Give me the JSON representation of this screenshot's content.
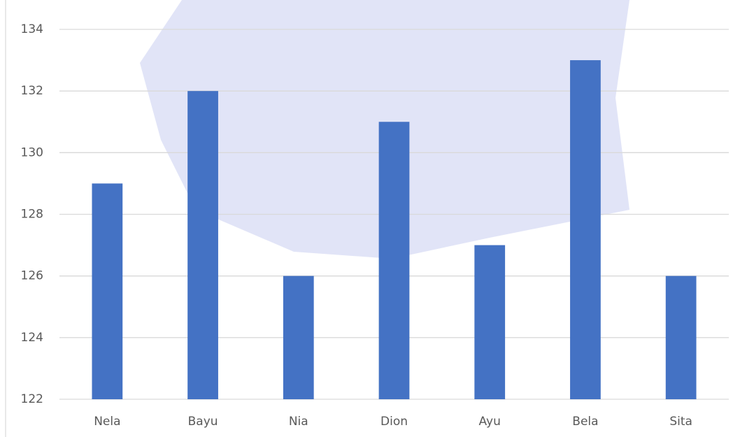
{
  "chart_data": {
    "type": "bar",
    "categories": [
      "Nela",
      "Bayu",
      "Nia",
      "Dion",
      "Ayu",
      "Bela",
      "Sita"
    ],
    "values": [
      129,
      132,
      126,
      131,
      127,
      133,
      126
    ],
    "color": "#4472c4",
    "ylim": [
      122,
      134
    ],
    "yticks": [
      122,
      124,
      126,
      128,
      130,
      132,
      134
    ],
    "grid": true
  }
}
